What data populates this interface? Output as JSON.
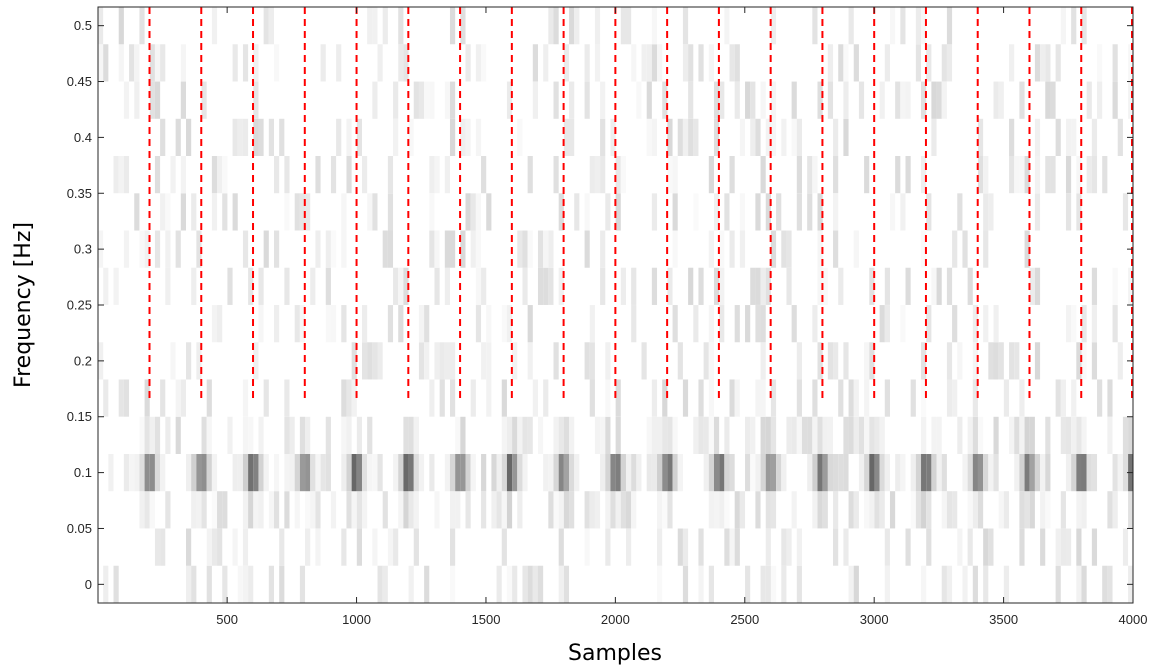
{
  "chart_data": {
    "type": "heatmap",
    "title": "",
    "xlabel": "Samples",
    "ylabel": "Frequency [Hz]",
    "xlim": [
      1,
      4000
    ],
    "ylim": [
      -0.0167,
      0.5167
    ],
    "colormap": "gray (inverted, dark = high power)",
    "x_ticks": [
      500,
      1000,
      1500,
      2000,
      2500,
      3000,
      3500,
      4000
    ],
    "x_tick_labels": [
      "500",
      "1000",
      "1500",
      "2000",
      "2500",
      "3000",
      "3500",
      "4000"
    ],
    "y_ticks": [
      0,
      0.05,
      0.1,
      0.15,
      0.2,
      0.25,
      0.3,
      0.35,
      0.4,
      0.45,
      0.5
    ],
    "y_tick_labels": [
      "0",
      "0.05",
      "0.1",
      "0.15",
      "0.2",
      "0.25",
      "0.3",
      "0.35",
      "0.4",
      "0.45",
      "0.5"
    ],
    "frequency_bins_hz": [
      0,
      0.0333,
      0.0667,
      0.1,
      0.1333,
      0.1667,
      0.2,
      0.2333,
      0.2667,
      0.3,
      0.3333,
      0.3667,
      0.4,
      0.4333,
      0.4667,
      0.5
    ],
    "dominant_frequency_hz": 0.1,
    "event_markers": {
      "color": "#ff0000",
      "style": "dashed",
      "y_range_hz": [
        0.1667,
        0.5167
      ],
      "samples": [
        200,
        400,
        600,
        800,
        1000,
        1200,
        1400,
        1600,
        1800,
        2000,
        2200,
        2400,
        2600,
        2800,
        3000,
        3200,
        3400,
        3600,
        3800,
        4000
      ]
    },
    "grid": false,
    "legend": "none"
  }
}
